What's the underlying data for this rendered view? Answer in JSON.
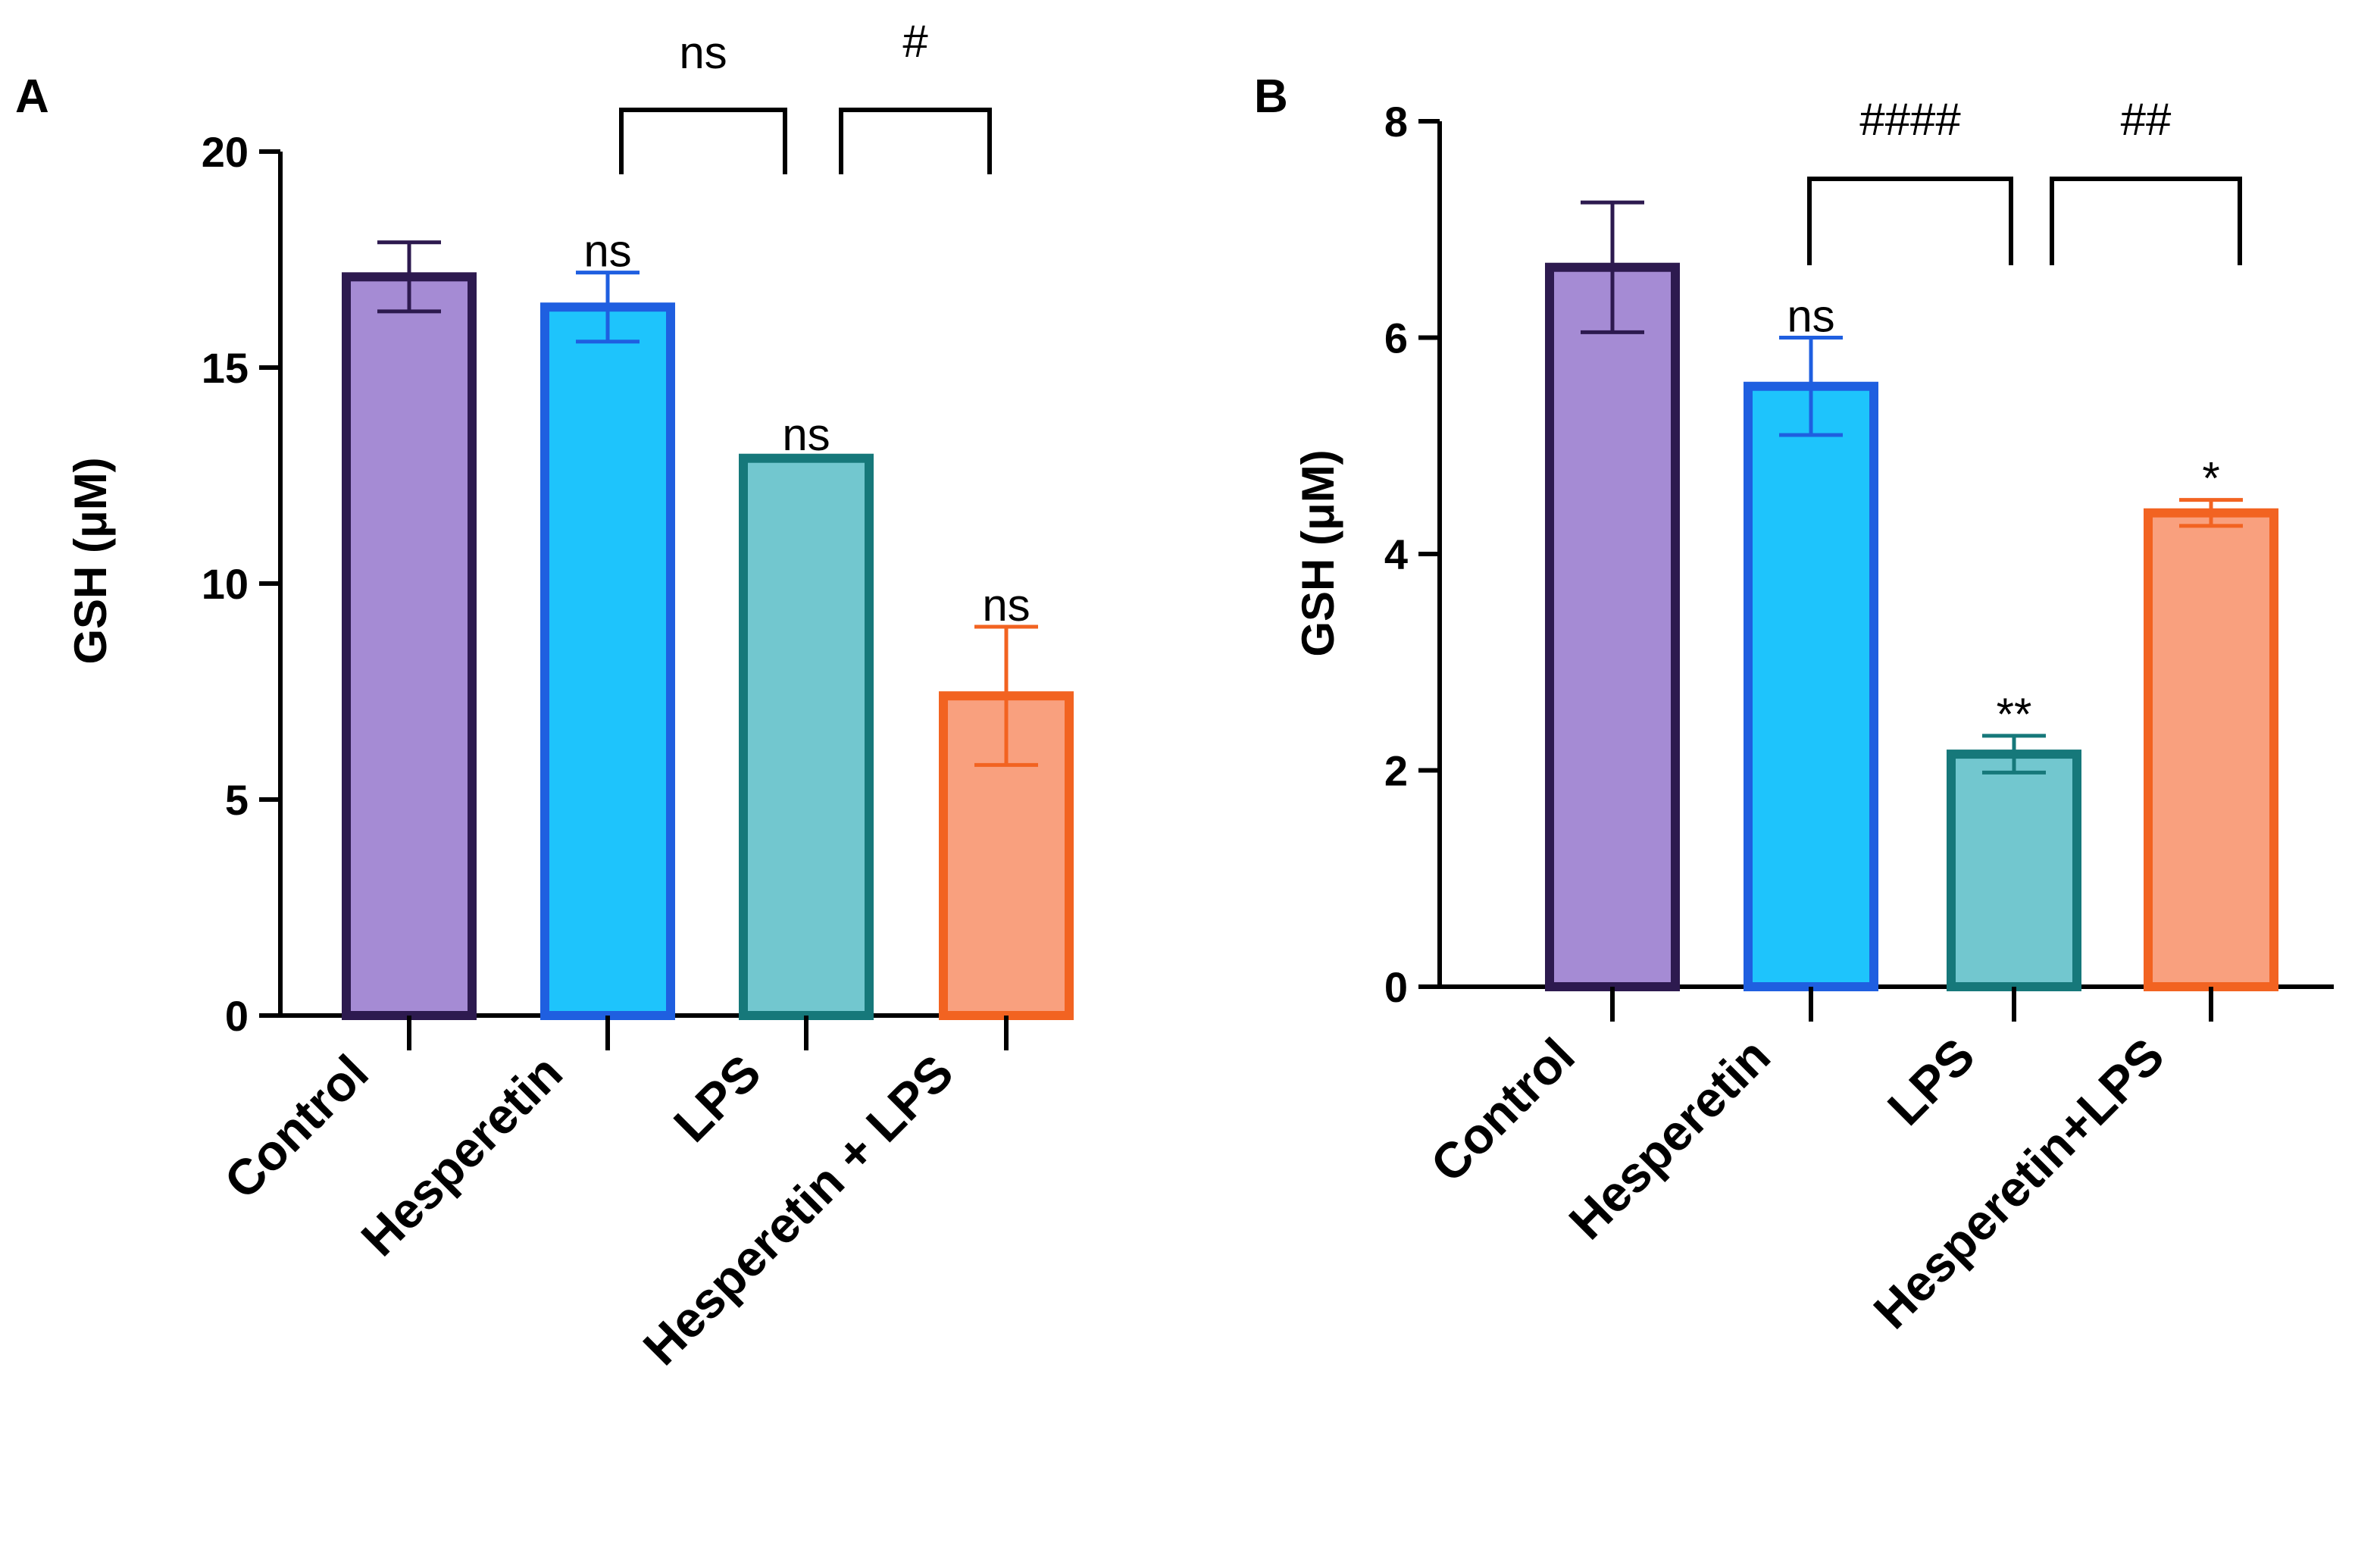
{
  "chart_data": [
    {
      "type": "bar",
      "panel": "A",
      "ylabel": "GSH (μM)",
      "ylim": [
        0,
        20
      ],
      "yticks": [
        "0",
        "5",
        "10",
        "15",
        "20"
      ],
      "categories": [
        "Control",
        "Hesperetin",
        "LPS",
        "Hesperetin + LPS"
      ],
      "values": [
        17.1,
        16.4,
        12.9,
        7.4
      ],
      "errors": [
        0.8,
        0.8,
        0.05,
        1.6
      ],
      "annotations": [
        "",
        "ns",
        "ns",
        "ns"
      ],
      "brackets": [
        {
          "from": 1,
          "to": 2,
          "label": "ns"
        },
        {
          "from": 2,
          "to": 3,
          "label": "#"
        }
      ],
      "colors": {
        "fills": [
          "#A58BD4",
          "#1EC4FC",
          "#72C7CF",
          "#F9A07E"
        ],
        "edges": [
          "#2D1A4F",
          "#1F5FE0",
          "#16787A",
          "#F26321"
        ]
      }
    },
    {
      "type": "bar",
      "panel": "B",
      "ylabel": "GSH (μM)",
      "ylim": [
        0,
        8
      ],
      "yticks": [
        "0",
        "2",
        "4",
        "6",
        "8"
      ],
      "categories": [
        "Control",
        "Hesperetin",
        "LPS",
        "Hesperetin+LPS"
      ],
      "values": [
        6.65,
        5.55,
        2.15,
        4.38
      ],
      "errors": [
        0.6,
        0.45,
        0.17,
        0.12
      ],
      "annotations": [
        "",
        "ns",
        "**",
        "*"
      ],
      "brackets": [
        {
          "from": 1,
          "to": 2,
          "label": "####"
        },
        {
          "from": 2,
          "to": 3,
          "label": "##"
        }
      ],
      "colors": {
        "fills": [
          "#A58BD4",
          "#1EC4FC",
          "#72C7CF",
          "#F9A07E"
        ],
        "edges": [
          "#2D1A4F",
          "#1F5FE0",
          "#16787A",
          "#F26321"
        ]
      }
    }
  ]
}
